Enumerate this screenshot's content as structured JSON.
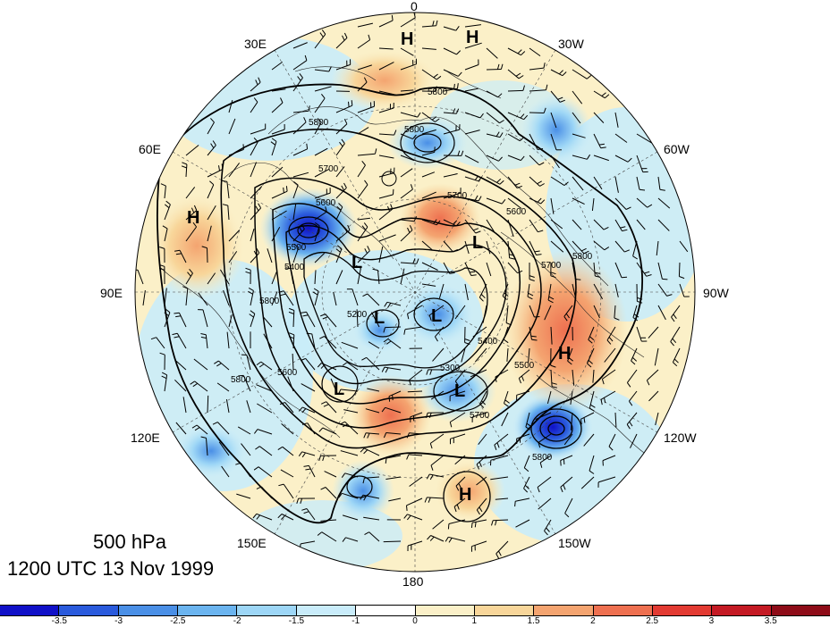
{
  "title": {
    "level": "500 hPa",
    "time": "1200 UTC 13 Nov 1999"
  },
  "longitude_labels": [
    "0",
    "30W",
    "60W",
    "90W",
    "120W",
    "150W",
    "180",
    "150E",
    "120E",
    "90E",
    "60E",
    "30E"
  ],
  "colorbar": {
    "colors": [
      "#1010c8",
      "#2a5adc",
      "#4a8fe6",
      "#6bb4ef",
      "#9dd6f6",
      "#c9ecfa",
      "#ffffff",
      "#fbf0c8",
      "#f8d69a",
      "#f4a470",
      "#ee7050",
      "#e23a32",
      "#c41a24",
      "#8e0c18"
    ],
    "tick_labels": [
      "-3.5",
      "-3",
      "-2.5",
      "-2",
      "-1.5",
      "-1",
      "0",
      "1",
      "1.5",
      "2",
      "2.5",
      "3",
      "3.5"
    ]
  },
  "pressure_systems": [
    {
      "label": "H",
      "note": "top near 0"
    },
    {
      "label": "H",
      "note": "top right"
    },
    {
      "label": "H",
      "note": "Asia"
    },
    {
      "label": "L",
      "note": "Siberia"
    },
    {
      "label": "L",
      "note": "central"
    },
    {
      "label": "L",
      "note": "pole"
    },
    {
      "label": "L",
      "note": "N America"
    },
    {
      "label": "H",
      "note": "Pacific"
    },
    {
      "label": "L",
      "note": "Alaska"
    },
    {
      "label": "L",
      "note": "E Siberia"
    },
    {
      "label": "H",
      "note": "N Pacific"
    }
  ],
  "contour_labels": [
    "5800",
    "5800",
    "5800",
    "5700",
    "5700",
    "5600",
    "5600",
    "5500",
    "5400",
    "5200",
    "5400",
    "5300",
    "5500",
    "5600",
    "5700",
    "5800",
    "5800",
    "5800",
    "5700",
    "5800"
  ]
}
